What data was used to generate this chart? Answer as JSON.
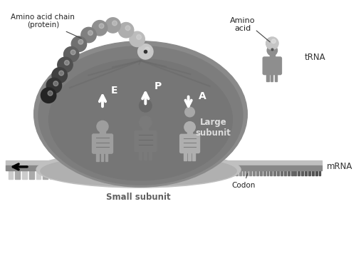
{
  "bg_color": "#ffffff",
  "title": "",
  "labels": {
    "amino_acid_chain": "Amino acid chain\n(protein)",
    "amino_acid": "Amino\nacid",
    "tRNA": "tRNA",
    "large_subunit": "Large\nsubunit",
    "small_subunit": "Small subunit",
    "codon": "Codon",
    "mRNA": "mRNA",
    "E": "E",
    "P": "P",
    "A": "A"
  },
  "colors": {
    "bg": "#ffffff",
    "large_subunit": "#808080",
    "small_subunit": "#b0b0b0",
    "mrna_backbone": "#c8c8c8",
    "mrna_dark": "#404040",
    "tRNA_e": "#a0a0a0",
    "tRNA_p": "#909090",
    "tRNA_a": "#b0b0b0",
    "tRNA_external": "#909090",
    "amino_chain_light": "#d0d0d0",
    "amino_chain_dark": "#404040",
    "arrow_white": "#ffffff",
    "arrow_black": "#000000",
    "text_dark": "#222222",
    "text_light": "#dddddd",
    "ribosome_inner": "#6a6a6a",
    "strand_gray": "#b8b8b8"
  }
}
